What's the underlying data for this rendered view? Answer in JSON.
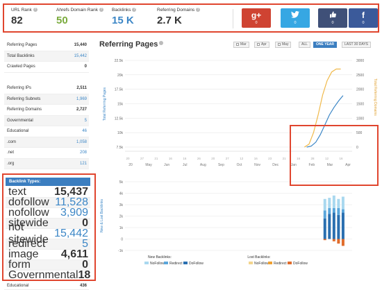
{
  "metrics": [
    {
      "label": "URL Rank",
      "value": "82",
      "color": "#333333"
    },
    {
      "label": "Ahrefs Domain Rank",
      "value": "50",
      "color": "#7aab3d"
    },
    {
      "label": "Backlinks",
      "value": "15 K",
      "color": "#3b86c6"
    },
    {
      "label": "Referring Domains",
      "value": "2.7 K",
      "color": "#333333"
    }
  ],
  "social": [
    {
      "name": "google-plus",
      "glyph": "g+",
      "count": "0"
    },
    {
      "name": "twitter",
      "glyph": "t",
      "count": "0"
    },
    {
      "name": "linkedin-like",
      "glyph": "in",
      "count": "0"
    },
    {
      "name": "facebook",
      "glyph": "f",
      "count": "0"
    }
  ],
  "stats_group1": [
    {
      "label": "Referring Pages",
      "value": "15,440",
      "blue": false
    },
    {
      "label": "Total Backlinks",
      "value": "15,442",
      "blue": true
    },
    {
      "label": "Crawled Pages",
      "value": "0",
      "blue": false
    }
  ],
  "stats_group2": [
    {
      "label": "Referring IPs",
      "value": "2,511",
      "blue": false
    },
    {
      "label": "Referring Subnets",
      "value": "1,969",
      "blue": true
    },
    {
      "label": "Referring Domains",
      "value": "2,727",
      "blue": false
    },
    {
      "label": "Governmental",
      "value": "5",
      "blue": true
    },
    {
      "label": "Educational",
      "value": "46",
      "blue": true
    },
    {
      "label": ".com",
      "value": "1,058",
      "blue": true
    },
    {
      "label": ".net",
      "value": "208",
      "blue": true
    },
    {
      "label": ".org",
      "value": "121",
      "blue": true
    }
  ],
  "backlink_types": {
    "title": "Backlink Types:",
    "rows": [
      {
        "label": "text",
        "value": "15,437",
        "blue": false
      },
      {
        "label": "dofollow",
        "value": "11,528",
        "blue": true
      },
      {
        "label": "nofollow",
        "value": "3,909",
        "blue": true
      },
      {
        "label": "sitewide",
        "value": "0",
        "blue": false
      },
      {
        "label": "not sitewide",
        "value": "15,442",
        "blue": true
      },
      {
        "label": "redirect",
        "value": "5",
        "blue": true
      },
      {
        "label": "image",
        "value": "4,611",
        "blue": false
      },
      {
        "label": "form",
        "value": "0",
        "blue": false
      },
      {
        "label": "Governmental",
        "value": "18",
        "blue": false
      }
    ],
    "after": {
      "label": "Educational",
      "value": "436",
      "blue": false
    }
  },
  "chart_header": {
    "title": "Referring Pages",
    "checkboxes": [
      "Mar",
      "Apr",
      "May"
    ],
    "buttons": [
      "ALL",
      "ONE YEAR",
      "LAST 30 DAYS"
    ],
    "active_button": "ONE YEAR"
  },
  "chart_data": [
    {
      "type": "line",
      "ylabel_left": "Total Referring Pages",
      "ylabel_right": "Total Referring Domains",
      "left_ticks": [
        "22.5k",
        "20k",
        "17.5k",
        "15k",
        "12.5k",
        "10k",
        "7.5k"
      ],
      "right_ticks": [
        "3000",
        "2500",
        "2000",
        "1500",
        "1000",
        "500",
        "0"
      ],
      "x_ticks": [
        "20",
        "May",
        "Jun",
        "Jul",
        "Aug",
        "Sep",
        "Oct",
        "Nov",
        "Dec",
        "Jan",
        "Feb",
        "Mar",
        "Apr"
      ],
      "x_day_ticks": [
        "20",
        "27",
        "21",
        "16",
        "16",
        "26",
        "20",
        "27",
        "12",
        "16",
        "23",
        "21",
        "16",
        "28",
        "12",
        "16"
      ],
      "ylim_left": [
        5000,
        22500
      ],
      "ylim_right": [
        0,
        3000
      ],
      "series": [
        {
          "color": "#f0b94a",
          "axis": "right",
          "x": [
            0.79,
            0.81,
            0.83,
            0.85,
            0.87,
            0.89,
            0.91,
            0.93,
            0.95
          ],
          "values": [
            0,
            100,
            500,
            1100,
            1800,
            2300,
            2600,
            2700,
            2700
          ]
        },
        {
          "color": "#3b86c6",
          "axis": "left",
          "x": [
            0.8,
            0.82,
            0.84,
            0.86,
            0.88,
            0.9,
            0.92,
            0.94,
            0.96
          ],
          "values": [
            5000,
            5200,
            6000,
            7500,
            9500,
            11500,
            13000,
            14300,
            15400
          ]
        }
      ]
    },
    {
      "type": "bar",
      "ylabel": "New & Lost Backlinks",
      "y_ticks": [
        "5k",
        "4k",
        "3k",
        "2k",
        "1k",
        "0",
        "-1k"
      ],
      "ylim": [
        -1000,
        5000
      ],
      "legend": {
        "new_title": "New Backlinks:",
        "lost_title": "Lost Backlinks:",
        "new": [
          {
            "name": "NoFollow",
            "color": "#a9d8ef"
          },
          {
            "name": "Redirect",
            "color": "#5aa6db"
          },
          {
            "name": "DoFollow",
            "color": "#2a6fb0"
          }
        ],
        "lost": [
          {
            "name": "NoFollow",
            "color": "#f4d58d"
          },
          {
            "name": "Redirect",
            "color": "#f0a030"
          },
          {
            "name": "DoFollow",
            "color": "#e06c2c"
          }
        ]
      },
      "bars": [
        {
          "x": 0.88,
          "dofollow": 1800,
          "redirect": 700,
          "nofollow": 1000,
          "lost": 100
        },
        {
          "x": 0.9,
          "dofollow": 2200,
          "redirect": 500,
          "nofollow": 900,
          "lost": 0
        },
        {
          "x": 0.92,
          "dofollow": 2300,
          "redirect": 400,
          "nofollow": 1100,
          "lost": 200
        },
        {
          "x": 0.94,
          "dofollow": 2100,
          "redirect": 600,
          "nofollow": 800,
          "lost": 400
        },
        {
          "x": 0.96,
          "dofollow": 2300,
          "redirect": 300,
          "nofollow": 1100,
          "lost": 600
        }
      ]
    }
  ]
}
